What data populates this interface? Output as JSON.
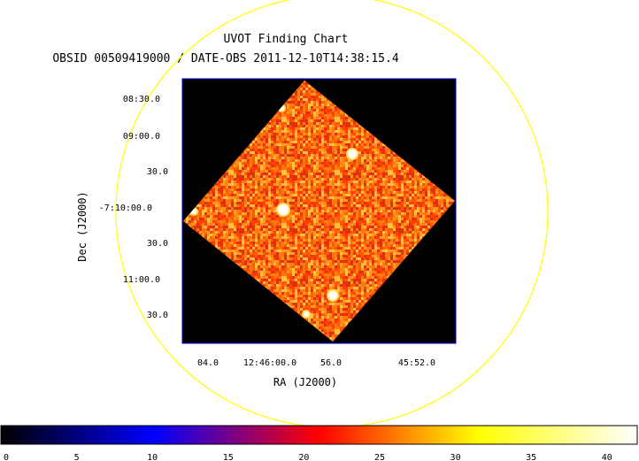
{
  "chart_data": {
    "type": "heatmap",
    "title": "UVOT Finding Chart",
    "subtitle": "OBSID 00509419000 / DATE-OBS 2011-12-10T14:38:15.4",
    "xlabel": "RA (J2000)",
    "ylabel": "Dec (J2000)",
    "x_tick_labels": [
      "04.0",
      "12:46:00.0",
      "56.0",
      "45:52.0"
    ],
    "y_tick_labels": [
      "08:30.0",
      "09:00.0",
      "30.0",
      "-7:10:00.0",
      "30.0",
      "11:00.0",
      "30.0"
    ],
    "colorbar": {
      "ticks": [
        0,
        5,
        10,
        15,
        20,
        25,
        30,
        35,
        40
      ],
      "range": [
        0,
        42
      ],
      "colormap": [
        "#000000",
        "#0000ff",
        "#ff0000",
        "#ffff00",
        "#ffffff"
      ]
    },
    "annotations": {
      "circle_color": "#ffff00",
      "frame_border_color": "#0000cc"
    },
    "background_color": "#000000",
    "noise_colors": [
      "#e03010",
      "#ff5a00",
      "#ff7a10",
      "#ff9a20",
      "#ffc040",
      "#ff4000"
    ],
    "sources": [
      {
        "name": "src1",
        "size": "large"
      },
      {
        "name": "src2",
        "size": "medium"
      },
      {
        "name": "src3",
        "size": "medium"
      },
      {
        "name": "src4",
        "size": "small"
      },
      {
        "name": "src5",
        "size": "small"
      },
      {
        "name": "src6",
        "size": "small"
      }
    ]
  }
}
